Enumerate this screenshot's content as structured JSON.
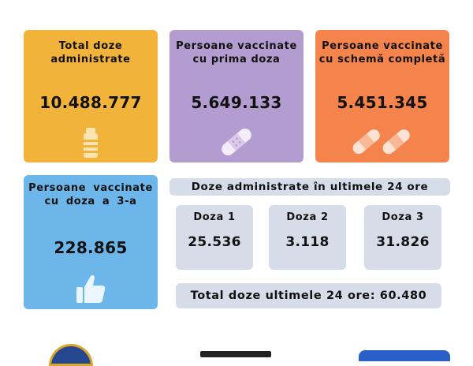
{
  "cards": {
    "total_doses": {
      "title": "Total doze\nadministrate",
      "value": "10.488.777",
      "icon": "vaccine-vial-icon",
      "color": "#f2b33b"
    },
    "first_dose": {
      "title": "Persoane vaccinate\ncu prima doza",
      "value": "5.649.133",
      "icon": "bandage-icon",
      "color": "#b39dd0"
    },
    "complete_schema": {
      "title": "Persoane vaccinate\ncu schemă completă",
      "value": "5.451.345",
      "icon": "double-bandage-icon",
      "color": "#f4844c"
    },
    "third_dose": {
      "title": "Persoane vaccinate\ncu doza a 3-a",
      "value": "228.865",
      "icon": "thumbs-up-icon",
      "color": "#6cb6ea"
    }
  },
  "last24": {
    "header": "Doze administrate în ultimele 24 ore",
    "doses": [
      {
        "label": "Doza 1",
        "value": "25.536"
      },
      {
        "label": "Doza 2",
        "value": "3.118"
      },
      {
        "label": "Doza 3",
        "value": "31.826"
      }
    ],
    "total": "Total doze ultimele 24 ore: 60.480",
    "panel_color": "#d7dde8"
  },
  "footer": {
    "logos": [
      "government-seal-logo",
      "ministry-logo",
      "campaign-logo"
    ]
  }
}
